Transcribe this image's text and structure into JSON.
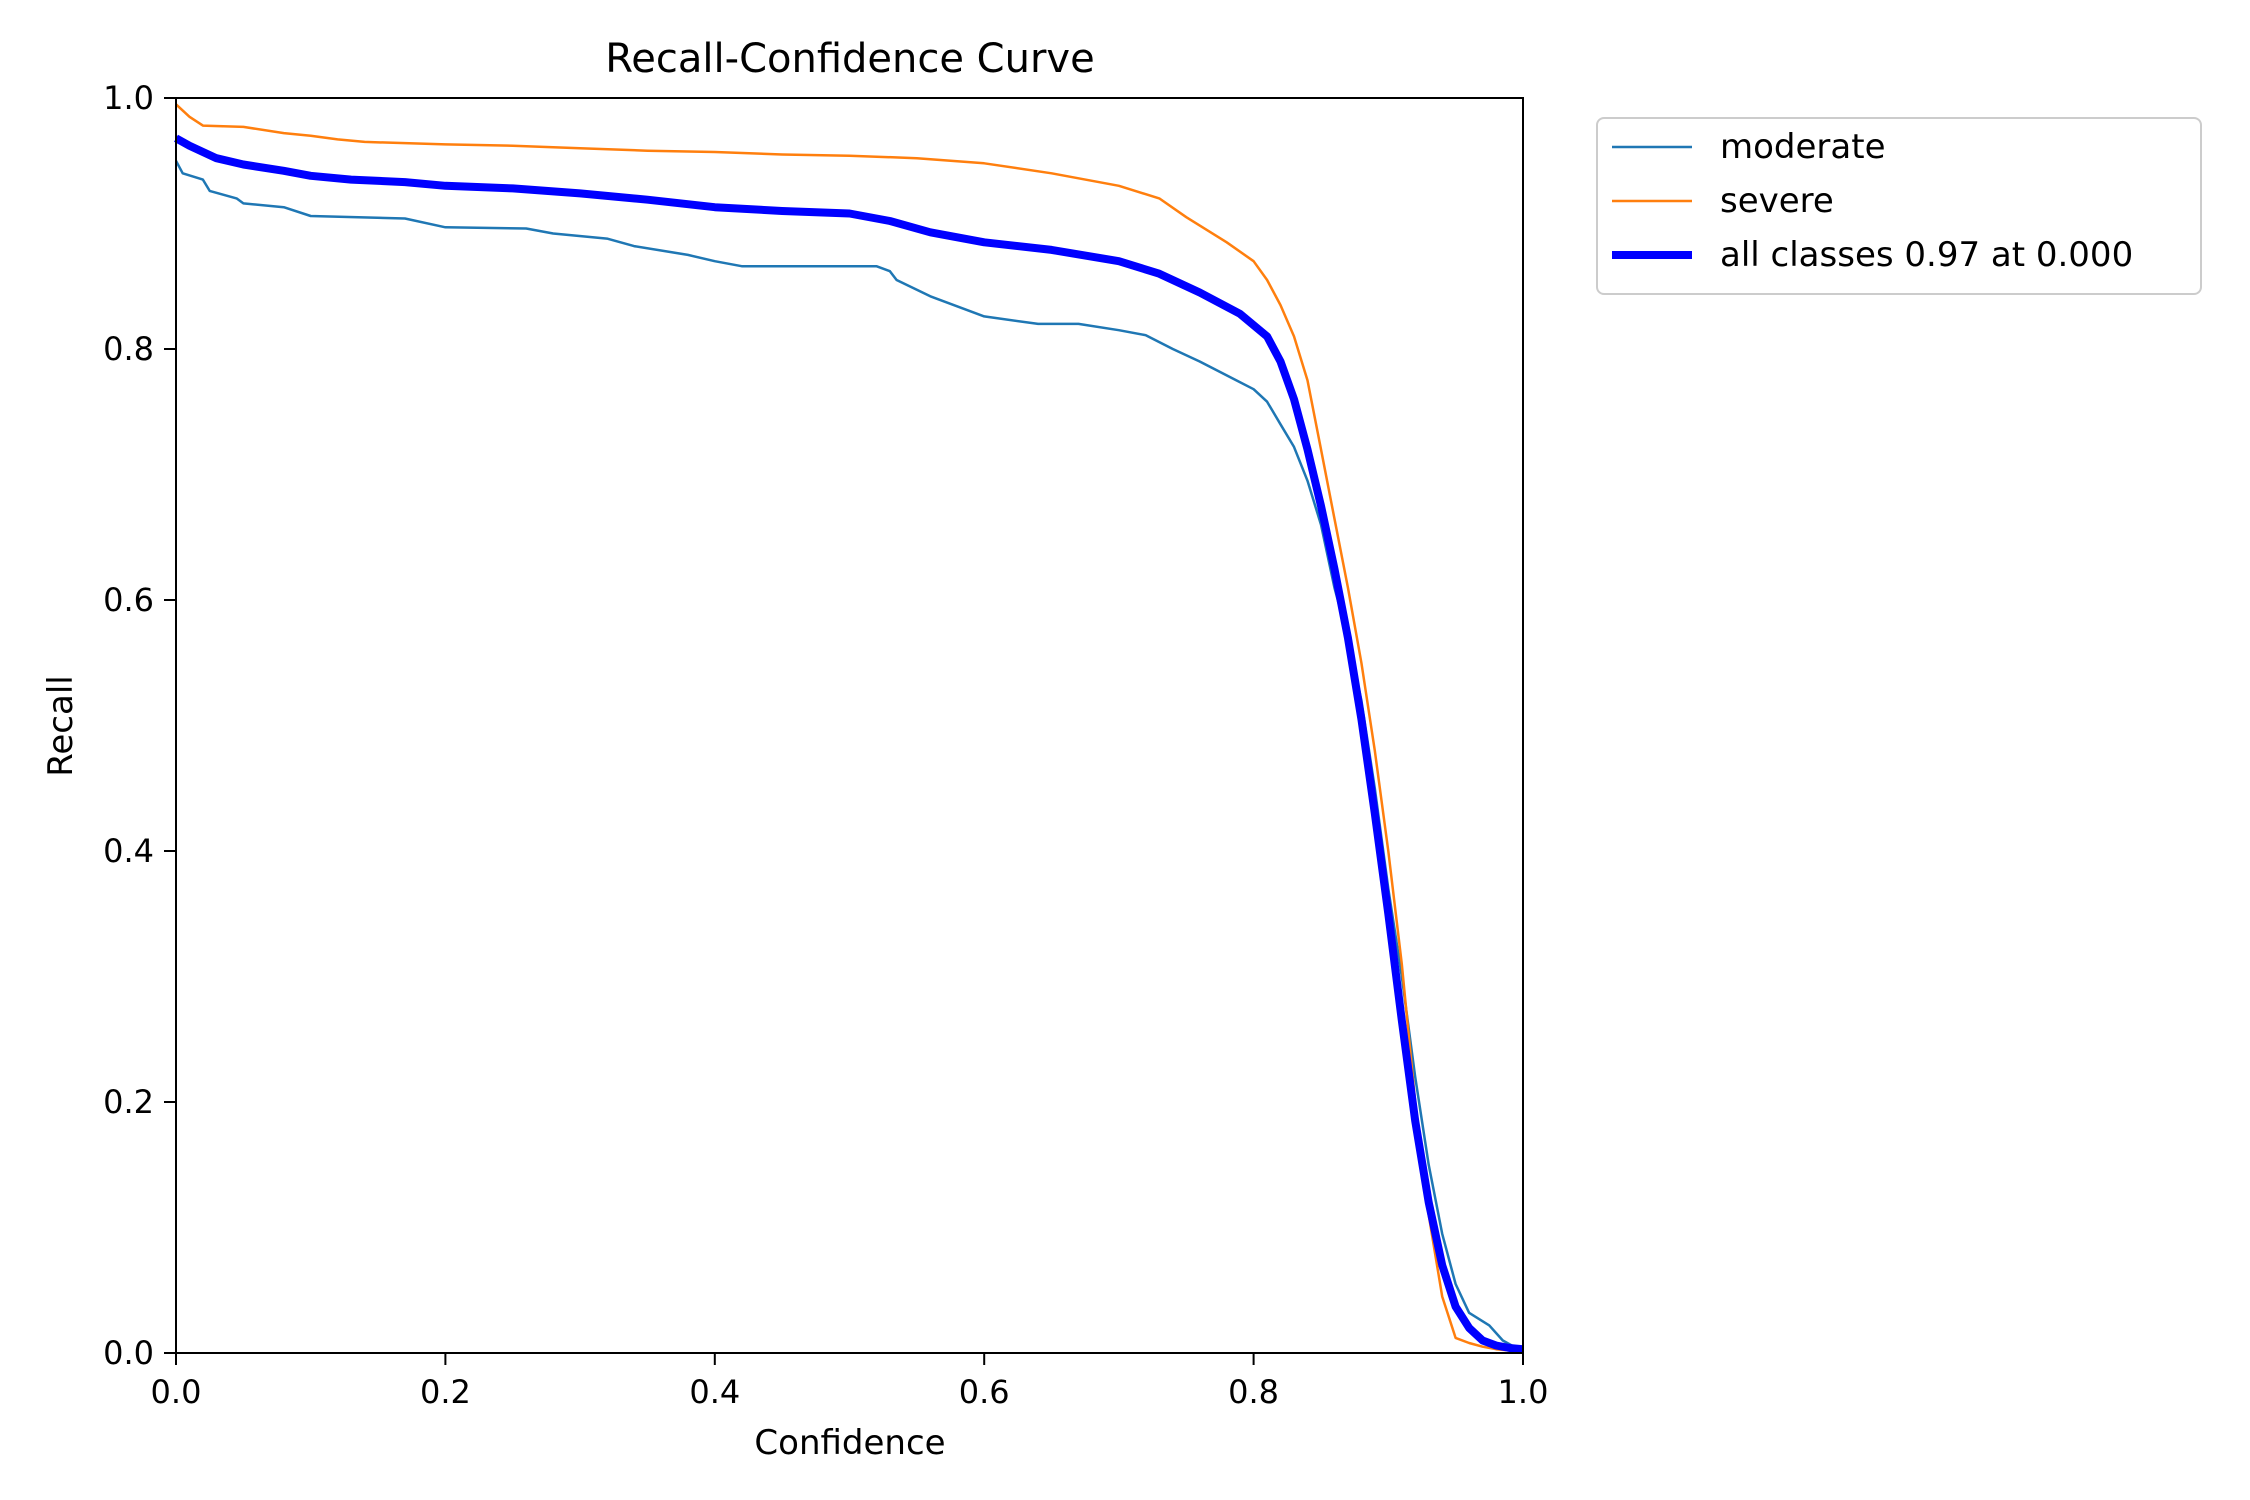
{
  "chart_data": {
    "type": "line",
    "title": "Recall-Confidence Curve",
    "xlabel": "Confidence",
    "ylabel": "Recall",
    "xlim": [
      0,
      1
    ],
    "ylim": [
      0,
      1
    ],
    "xticks": [
      "0.0",
      "0.2",
      "0.4",
      "0.6",
      "0.8",
      "1.0"
    ],
    "yticks": [
      "0.0",
      "0.2",
      "0.4",
      "0.6",
      "0.8",
      "1.0"
    ],
    "grid": false,
    "legend_position": "outside upper right",
    "series": [
      {
        "name": "moderate",
        "color": "#1f77b4",
        "line_width": "thin",
        "points": [
          [
            0.0,
            0.95
          ],
          [
            0.005,
            0.94
          ],
          [
            0.02,
            0.935
          ],
          [
            0.025,
            0.926
          ],
          [
            0.045,
            0.92
          ],
          [
            0.05,
            0.916
          ],
          [
            0.08,
            0.913
          ],
          [
            0.1,
            0.906
          ],
          [
            0.17,
            0.904
          ],
          [
            0.2,
            0.897
          ],
          [
            0.26,
            0.896
          ],
          [
            0.28,
            0.892
          ],
          [
            0.32,
            0.888
          ],
          [
            0.34,
            0.882
          ],
          [
            0.38,
            0.875
          ],
          [
            0.4,
            0.87
          ],
          [
            0.42,
            0.866
          ],
          [
            0.52,
            0.866
          ],
          [
            0.53,
            0.862
          ],
          [
            0.535,
            0.855
          ],
          [
            0.56,
            0.842
          ],
          [
            0.6,
            0.826
          ],
          [
            0.64,
            0.82
          ],
          [
            0.67,
            0.82
          ],
          [
            0.7,
            0.815
          ],
          [
            0.72,
            0.811
          ],
          [
            0.74,
            0.8
          ],
          [
            0.76,
            0.79
          ],
          [
            0.78,
            0.779
          ],
          [
            0.8,
            0.768
          ],
          [
            0.81,
            0.758
          ],
          [
            0.82,
            0.74
          ],
          [
            0.83,
            0.722
          ],
          [
            0.84,
            0.695
          ],
          [
            0.85,
            0.66
          ],
          [
            0.86,
            0.61
          ],
          [
            0.87,
            0.57
          ],
          [
            0.88,
            0.52
          ],
          [
            0.89,
            0.45
          ],
          [
            0.9,
            0.37
          ],
          [
            0.91,
            0.3
          ],
          [
            0.92,
            0.22
          ],
          [
            0.93,
            0.15
          ],
          [
            0.94,
            0.095
          ],
          [
            0.95,
            0.055
          ],
          [
            0.96,
            0.032
          ],
          [
            0.975,
            0.022
          ],
          [
            0.985,
            0.01
          ],
          [
            0.995,
            0.004
          ],
          [
            1.0,
            0.003
          ]
        ]
      },
      {
        "name": "severe",
        "color": "#ff7f0e",
        "line_width": "thin",
        "points": [
          [
            0.0,
            0.995
          ],
          [
            0.01,
            0.985
          ],
          [
            0.02,
            0.978
          ],
          [
            0.05,
            0.977
          ],
          [
            0.08,
            0.972
          ],
          [
            0.1,
            0.97
          ],
          [
            0.12,
            0.967
          ],
          [
            0.14,
            0.965
          ],
          [
            0.2,
            0.963
          ],
          [
            0.25,
            0.962
          ],
          [
            0.3,
            0.96
          ],
          [
            0.35,
            0.958
          ],
          [
            0.4,
            0.957
          ],
          [
            0.45,
            0.955
          ],
          [
            0.5,
            0.954
          ],
          [
            0.55,
            0.952
          ],
          [
            0.6,
            0.948
          ],
          [
            0.65,
            0.94
          ],
          [
            0.7,
            0.93
          ],
          [
            0.73,
            0.92
          ],
          [
            0.75,
            0.905
          ],
          [
            0.78,
            0.885
          ],
          [
            0.8,
            0.87
          ],
          [
            0.81,
            0.855
          ],
          [
            0.82,
            0.835
          ],
          [
            0.83,
            0.81
          ],
          [
            0.84,
            0.775
          ],
          [
            0.85,
            0.72
          ],
          [
            0.86,
            0.665
          ],
          [
            0.87,
            0.61
          ],
          [
            0.88,
            0.55
          ],
          [
            0.89,
            0.48
          ],
          [
            0.9,
            0.4
          ],
          [
            0.91,
            0.31
          ],
          [
            0.92,
            0.2
          ],
          [
            0.93,
            0.11
          ],
          [
            0.94,
            0.045
          ],
          [
            0.95,
            0.012
          ],
          [
            0.96,
            0.008
          ],
          [
            0.97,
            0.005
          ],
          [
            0.98,
            0.003
          ],
          [
            0.99,
            0.002
          ],
          [
            1.0,
            0.001
          ]
        ]
      },
      {
        "name": "all classes 0.97 at 0.000",
        "color": "#0000ff",
        "line_width": "thick",
        "points": [
          [
            0.0,
            0.968
          ],
          [
            0.01,
            0.962
          ],
          [
            0.03,
            0.952
          ],
          [
            0.05,
            0.947
          ],
          [
            0.08,
            0.942
          ],
          [
            0.1,
            0.938
          ],
          [
            0.13,
            0.935
          ],
          [
            0.17,
            0.933
          ],
          [
            0.2,
            0.93
          ],
          [
            0.25,
            0.928
          ],
          [
            0.3,
            0.924
          ],
          [
            0.35,
            0.919
          ],
          [
            0.4,
            0.913
          ],
          [
            0.45,
            0.91
          ],
          [
            0.5,
            0.908
          ],
          [
            0.53,
            0.902
          ],
          [
            0.56,
            0.893
          ],
          [
            0.6,
            0.885
          ],
          [
            0.65,
            0.879
          ],
          [
            0.7,
            0.87
          ],
          [
            0.73,
            0.86
          ],
          [
            0.76,
            0.845
          ],
          [
            0.79,
            0.828
          ],
          [
            0.81,
            0.81
          ],
          [
            0.82,
            0.79
          ],
          [
            0.83,
            0.76
          ],
          [
            0.84,
            0.72
          ],
          [
            0.85,
            0.675
          ],
          [
            0.86,
            0.625
          ],
          [
            0.87,
            0.57
          ],
          [
            0.88,
            0.505
          ],
          [
            0.89,
            0.43
          ],
          [
            0.9,
            0.35
          ],
          [
            0.91,
            0.265
          ],
          [
            0.92,
            0.185
          ],
          [
            0.93,
            0.12
          ],
          [
            0.94,
            0.07
          ],
          [
            0.95,
            0.037
          ],
          [
            0.96,
            0.02
          ],
          [
            0.97,
            0.01
          ],
          [
            0.98,
            0.006
          ],
          [
            0.99,
            0.004
          ],
          [
            1.0,
            0.003
          ]
        ]
      }
    ]
  }
}
